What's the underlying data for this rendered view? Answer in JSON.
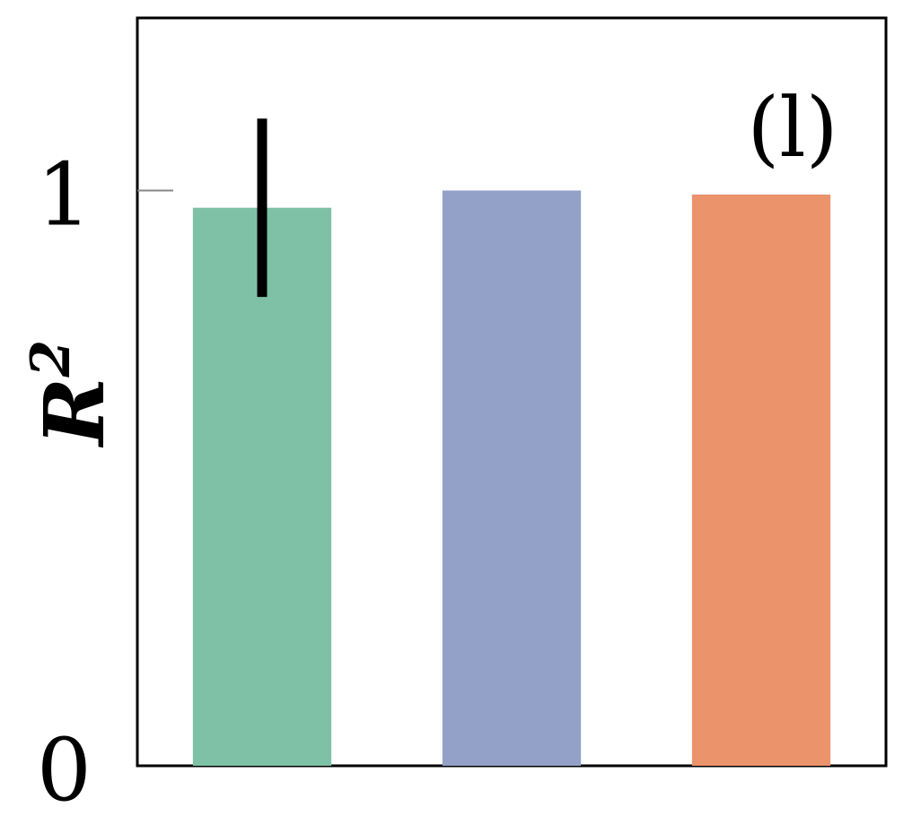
{
  "chart_data": {
    "type": "bar",
    "panel_label": "(l)",
    "ylabel": "R",
    "ylabel_superscript": "2",
    "ylim": [
      0,
      1.3
    ],
    "yticks": [
      {
        "value": 0,
        "label": "0"
      },
      {
        "value": 1,
        "label": "1"
      }
    ],
    "grid": false,
    "bars": [
      {
        "value": 0.97,
        "error": 0.155,
        "color": "#7fc1a6"
      },
      {
        "value": 1.0,
        "error": 0.0,
        "color": "#93a1c8"
      },
      {
        "value": 0.993,
        "error": 0.0,
        "color": "#eb936b"
      }
    ]
  }
}
